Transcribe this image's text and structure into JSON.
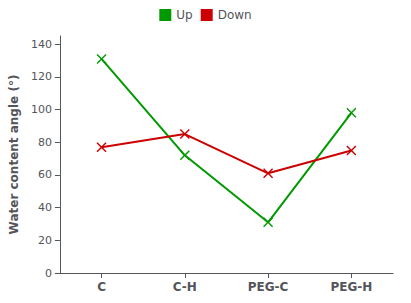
{
  "chart_data": {
    "type": "line",
    "categories": [
      "C",
      "C-H",
      "PEG-C",
      "PEG-H"
    ],
    "series": [
      {
        "name": "Up",
        "color": "#009900",
        "marker": "x",
        "values": [
          131,
          72,
          31,
          98
        ]
      },
      {
        "name": "Down",
        "color": "#cc0000",
        "marker": "x",
        "values": [
          77,
          85,
          61,
          75
        ]
      }
    ],
    "ylabel": "Water content angle (°)",
    "ylim": [
      0,
      145
    ],
    "yticks": [
      0,
      20,
      40,
      60,
      80,
      100,
      120,
      140
    ],
    "grid": false,
    "legend": "top"
  }
}
